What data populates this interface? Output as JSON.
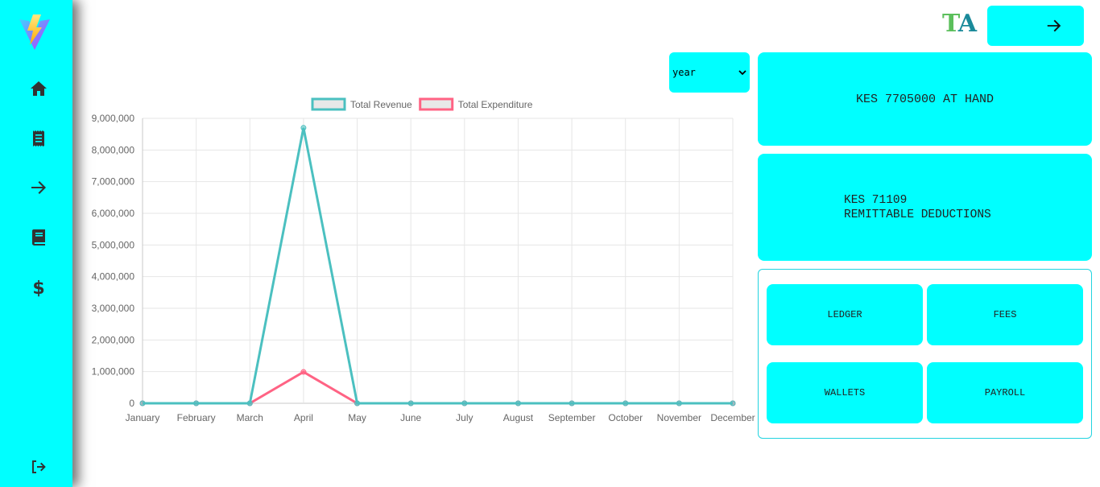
{
  "header": {
    "brand_t": "T",
    "brand_a": "A"
  },
  "sidebar": {
    "items": [
      {
        "icon": "home-icon"
      },
      {
        "icon": "receipt-icon"
      },
      {
        "icon": "arrow-right-icon"
      },
      {
        "icon": "book-icon"
      },
      {
        "icon": "dollar-icon"
      }
    ],
    "logout_icon": "logout-icon"
  },
  "filter": {
    "period": "year"
  },
  "cards": {
    "at_hand": "KES 7705000 AT HAND",
    "remit_amount": "KES 71109",
    "remit_label": "REMITTABLE DEDUCTIONS"
  },
  "quick_links": {
    "ledger": "LEDGER",
    "fees": "FEES",
    "wallets": "WALLETS",
    "payroll": "PAYROLL"
  },
  "colors": {
    "accent": "#00ffff",
    "revenue": "#4bc0c0",
    "expenditure": "#ff6384"
  },
  "chart_data": {
    "type": "line",
    "categories": [
      "January",
      "February",
      "March",
      "April",
      "May",
      "June",
      "July",
      "August",
      "September",
      "October",
      "November",
      "December"
    ],
    "series": [
      {
        "name": "Total Revenue",
        "color": "#4bc0c0",
        "values": [
          0,
          0,
          0,
          8700000,
          0,
          0,
          0,
          0,
          0,
          0,
          0,
          0
        ]
      },
      {
        "name": "Total Expenditure",
        "color": "#ff6384",
        "values": [
          0,
          0,
          0,
          990000,
          0,
          0,
          0,
          0,
          0,
          0,
          0,
          0
        ]
      }
    ],
    "ylim": [
      0,
      9000000
    ],
    "yticks": [
      "0",
      "1,000,000",
      "2,000,000",
      "3,000,000",
      "4,000,000",
      "5,000,000",
      "6,000,000",
      "7,000,000",
      "8,000,000",
      "9,000,000"
    ],
    "legend": "top",
    "grid": true
  }
}
